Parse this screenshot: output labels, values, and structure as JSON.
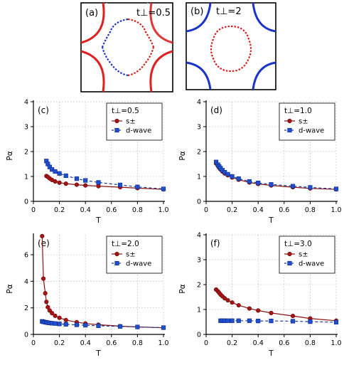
{
  "fermi_panels": [
    {
      "label": "(a)",
      "param": "t⊥=0.5"
    },
    {
      "label": "(b)",
      "param": "t⊥=2"
    }
  ],
  "colors": {
    "s_pm": "#a31515",
    "d_wave": "#1f4fd1",
    "fs_red": "#d62020",
    "fs_blue": "#1c34c9",
    "grid": "#bdbdbd"
  },
  "chart_data": [
    {
      "type": "line",
      "panel_label": "(c)",
      "legend_title": "t⊥=0.5",
      "xlabel": "T",
      "ylabel": "Pα",
      "xlim": [
        0,
        1.0
      ],
      "ylim": [
        0,
        4
      ],
      "xticks": [
        "0",
        "0.2",
        "0.4",
        "0.6",
        "0.8",
        "1.0"
      ],
      "yticks": [
        "0",
        "1",
        "2",
        "3",
        "4"
      ],
      "grid": true,
      "legend_position": "top-right",
      "series": [
        {
          "name": "s±",
          "style": "solid-circle",
          "x": [
            0.1,
            0.111,
            0.125,
            0.143,
            0.167,
            0.2,
            0.25,
            0.333,
            0.4,
            0.5,
            0.667,
            0.8,
            1.0
          ],
          "y": [
            1.02,
            0.98,
            0.92,
            0.86,
            0.8,
            0.75,
            0.71,
            0.67,
            0.64,
            0.61,
            0.57,
            0.53,
            0.48
          ]
        },
        {
          "name": "d-wave",
          "style": "dashed-square",
          "x": [
            0.1,
            0.111,
            0.125,
            0.143,
            0.167,
            0.2,
            0.25,
            0.333,
            0.4,
            0.5,
            0.667,
            0.8,
            1.0
          ],
          "y": [
            1.62,
            1.5,
            1.38,
            1.28,
            1.2,
            1.12,
            1.03,
            0.91,
            0.84,
            0.76,
            0.66,
            0.58,
            0.5
          ]
        }
      ]
    },
    {
      "type": "line",
      "panel_label": "(d)",
      "legend_title": "t⊥=1.0",
      "xlabel": "T",
      "ylabel": "Pα",
      "xlim": [
        0,
        1.0
      ],
      "ylim": [
        0,
        4
      ],
      "xticks": [
        "0",
        "0.2",
        "0.4",
        "0.6",
        "0.8",
        "1.0"
      ],
      "yticks": [
        "0",
        "1",
        "2",
        "3",
        "4"
      ],
      "grid": true,
      "legend_position": "top-right",
      "series": [
        {
          "name": "s±",
          "style": "solid-circle",
          "x": [
            0.077,
            0.091,
            0.1,
            0.111,
            0.125,
            0.143,
            0.167,
            0.2,
            0.25,
            0.333,
            0.4,
            0.5,
            0.667,
            0.8,
            1.0
          ],
          "y": [
            1.52,
            1.42,
            1.35,
            1.28,
            1.2,
            1.12,
            1.05,
            0.96,
            0.87,
            0.76,
            0.7,
            0.64,
            0.57,
            0.52,
            0.48
          ]
        },
        {
          "name": "d-wave",
          "style": "dashed-square",
          "x": [
            0.077,
            0.091,
            0.1,
            0.111,
            0.125,
            0.143,
            0.167,
            0.2,
            0.25,
            0.333,
            0.4,
            0.5,
            0.667,
            0.8,
            1.0
          ],
          "y": [
            1.58,
            1.47,
            1.4,
            1.33,
            1.25,
            1.17,
            1.09,
            1.0,
            0.91,
            0.8,
            0.74,
            0.68,
            0.61,
            0.56,
            0.5
          ]
        }
      ]
    },
    {
      "type": "line",
      "panel_label": "(e)",
      "legend_title": "t⊥=2.0",
      "xlabel": "T",
      "ylabel": "Pα",
      "xlim": [
        0,
        1.0
      ],
      "ylim": [
        0,
        7.5
      ],
      "xticks": [
        "0",
        "0.2",
        "0.4",
        "0.6",
        "0.8",
        "1.0"
      ],
      "yticks": [
        "0",
        "2",
        "4",
        "6"
      ],
      "grid": true,
      "legend_position": "top-right",
      "series": [
        {
          "name": "s±",
          "style": "solid-circle",
          "x": [
            0.067,
            0.077,
            0.091,
            0.1,
            0.111,
            0.125,
            0.143,
            0.167,
            0.2,
            0.25,
            0.333,
            0.4,
            0.5,
            0.667,
            0.8,
            1.0
          ],
          "y": [
            7.4,
            4.2,
            3.1,
            2.45,
            2.05,
            1.8,
            1.6,
            1.4,
            1.25,
            1.08,
            0.92,
            0.82,
            0.73,
            0.62,
            0.56,
            0.5
          ]
        },
        {
          "name": "d-wave",
          "style": "dashed-square",
          "x": [
            0.067,
            0.077,
            0.091,
            0.1,
            0.111,
            0.125,
            0.143,
            0.167,
            0.2,
            0.25,
            0.333,
            0.4,
            0.5,
            0.667,
            0.8,
            1.0
          ],
          "y": [
            0.98,
            0.95,
            0.92,
            0.9,
            0.88,
            0.86,
            0.84,
            0.82,
            0.79,
            0.76,
            0.72,
            0.69,
            0.65,
            0.6,
            0.56,
            0.51
          ]
        }
      ]
    },
    {
      "type": "line",
      "panel_label": "(f)",
      "legend_title": "t⊥=3.0",
      "xlabel": "T",
      "ylabel": "Pα",
      "xlim": [
        0,
        1.0
      ],
      "ylim": [
        0,
        4
      ],
      "xticks": [
        "0",
        "0.2",
        "0.4",
        "0.6",
        "0.8",
        "1.0"
      ],
      "yticks": [
        "0",
        "1",
        "2",
        "3",
        "4"
      ],
      "grid": true,
      "legend_position": "top-right",
      "series": [
        {
          "name": "s±",
          "style": "solid-circle",
          "x": [
            0.077,
            0.091,
            0.1,
            0.111,
            0.125,
            0.143,
            0.167,
            0.2,
            0.25,
            0.333,
            0.4,
            0.5,
            0.667,
            0.8,
            1.0
          ],
          "y": [
            1.8,
            1.73,
            1.67,
            1.6,
            1.53,
            1.45,
            1.37,
            1.28,
            1.17,
            1.04,
            0.96,
            0.86,
            0.74,
            0.64,
            0.55
          ]
        },
        {
          "name": "d-wave",
          "style": "dashed-square",
          "x": [
            0.111,
            0.125,
            0.143,
            0.167,
            0.2,
            0.25,
            0.333,
            0.4,
            0.5,
            0.667,
            0.8,
            1.0
          ],
          "y": [
            0.55,
            0.55,
            0.55,
            0.55,
            0.55,
            0.55,
            0.55,
            0.54,
            0.54,
            0.53,
            0.51,
            0.49
          ]
        }
      ]
    }
  ]
}
